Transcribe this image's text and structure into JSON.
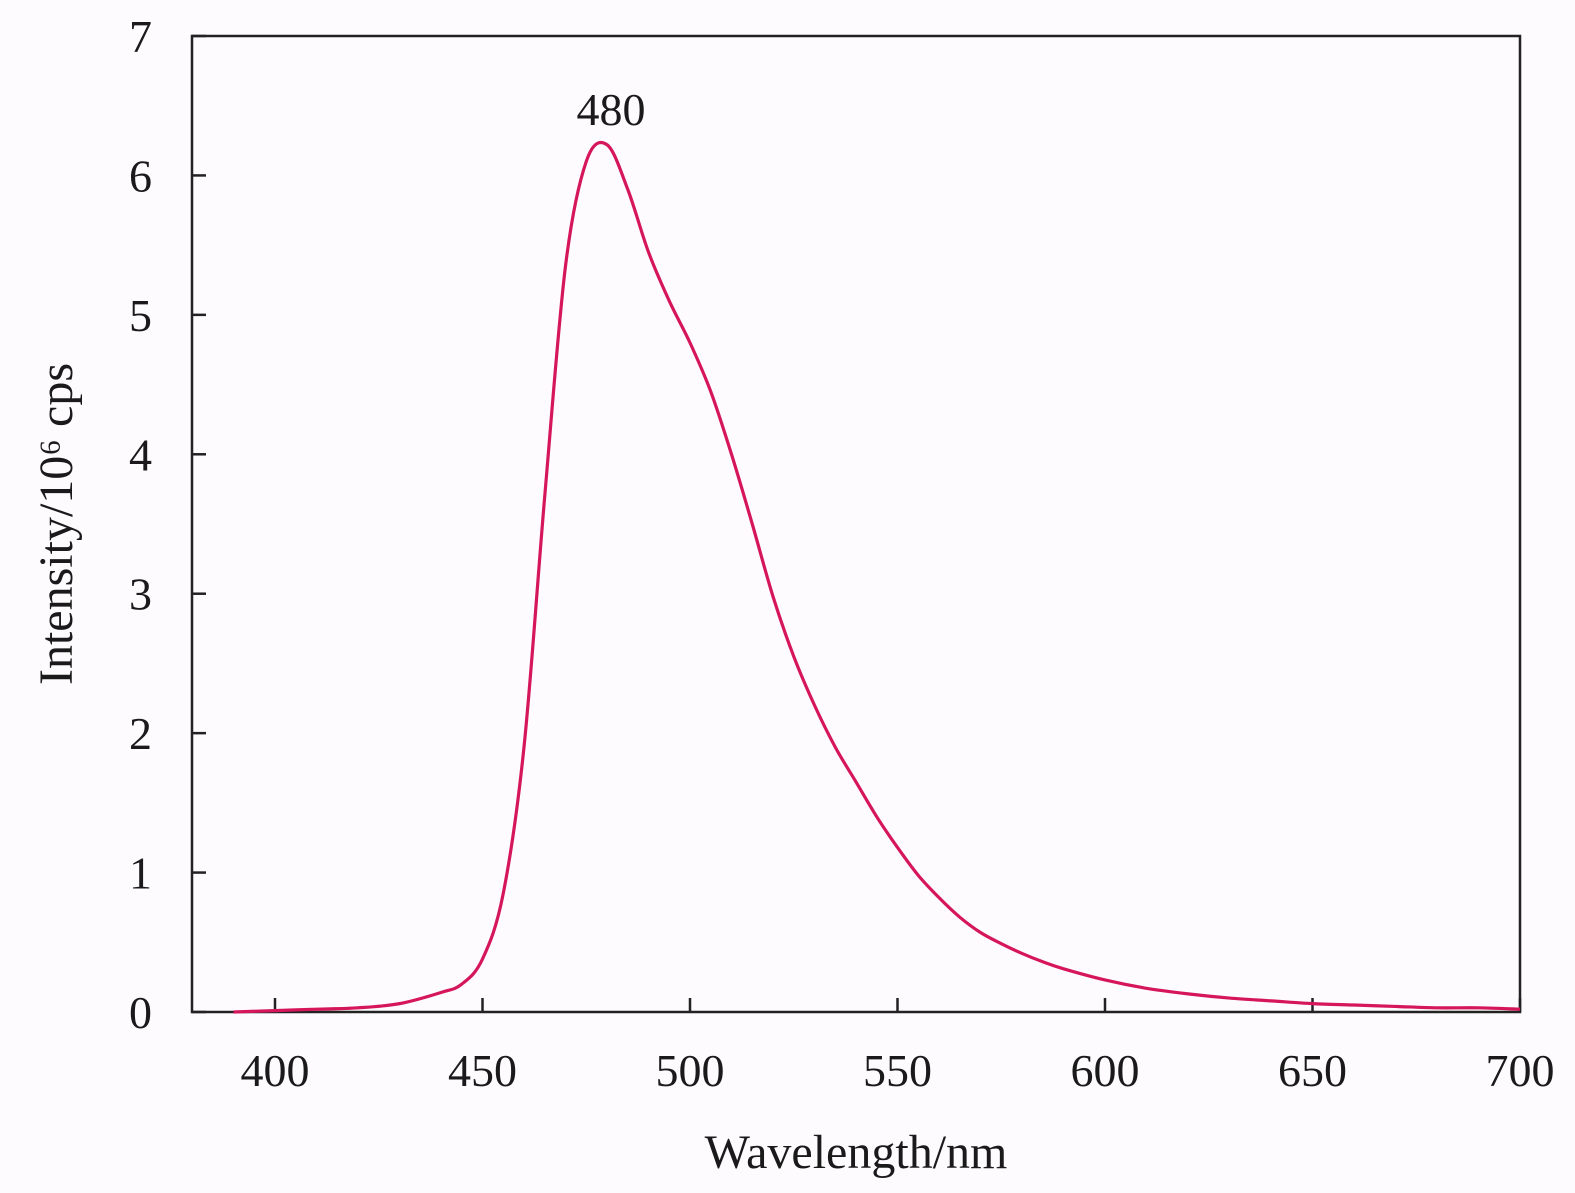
{
  "chart_data": {
    "type": "line",
    "xlabel": "Wavelength/nm",
    "ylabel": "Intensity/10⁶ cps",
    "xlim": [
      380,
      700
    ],
    "ylim": [
      0,
      7
    ],
    "xticks": [
      400,
      450,
      500,
      550,
      600,
      650,
      700
    ],
    "yticks": [
      0,
      1,
      2,
      3,
      4,
      5,
      6,
      7
    ],
    "grid": false,
    "line_color": "#d6165a",
    "annotations": [
      {
        "text": "480",
        "x": 480,
        "y": 6.22
      }
    ],
    "series": [
      {
        "points": [
          [
            390,
            0.0
          ],
          [
            400,
            0.01
          ],
          [
            410,
            0.02
          ],
          [
            420,
            0.03
          ],
          [
            430,
            0.06
          ],
          [
            440,
            0.14
          ],
          [
            445,
            0.2
          ],
          [
            450,
            0.38
          ],
          [
            455,
            0.85
          ],
          [
            460,
            1.9
          ],
          [
            465,
            3.7
          ],
          [
            470,
            5.35
          ],
          [
            475,
            6.1
          ],
          [
            480,
            6.22
          ],
          [
            485,
            5.9
          ],
          [
            490,
            5.45
          ],
          [
            495,
            5.1
          ],
          [
            500,
            4.8
          ],
          [
            505,
            4.45
          ],
          [
            510,
            4.0
          ],
          [
            515,
            3.5
          ],
          [
            520,
            2.98
          ],
          [
            525,
            2.55
          ],
          [
            530,
            2.2
          ],
          [
            535,
            1.9
          ],
          [
            540,
            1.65
          ],
          [
            545,
            1.4
          ],
          [
            550,
            1.18
          ],
          [
            555,
            0.98
          ],
          [
            560,
            0.82
          ],
          [
            565,
            0.68
          ],
          [
            570,
            0.57
          ],
          [
            575,
            0.49
          ],
          [
            580,
            0.42
          ],
          [
            585,
            0.36
          ],
          [
            590,
            0.31
          ],
          [
            600,
            0.23
          ],
          [
            610,
            0.17
          ],
          [
            620,
            0.13
          ],
          [
            630,
            0.1
          ],
          [
            640,
            0.08
          ],
          [
            650,
            0.06
          ],
          [
            660,
            0.05
          ],
          [
            670,
            0.04
          ],
          [
            680,
            0.03
          ],
          [
            690,
            0.03
          ],
          [
            700,
            0.02
          ]
        ]
      }
    ]
  }
}
